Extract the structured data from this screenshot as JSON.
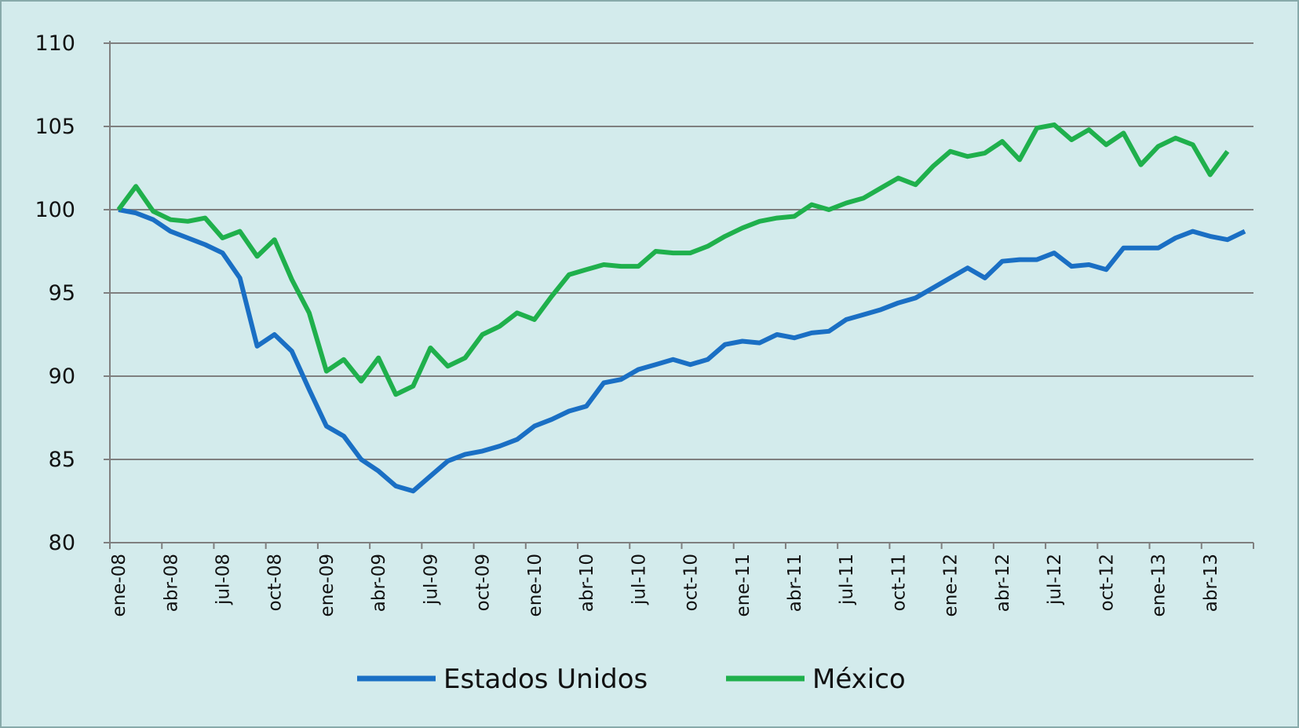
{
  "chart_data": {
    "type": "line",
    "categories": [
      "ene-08",
      null,
      null,
      "abr-08",
      null,
      null,
      "jul-08",
      null,
      null,
      "oct-08",
      null,
      null,
      "ene-09",
      null,
      null,
      "abr-09",
      null,
      null,
      "jul-09",
      null,
      null,
      "oct-09",
      null,
      null,
      "ene-10",
      null,
      null,
      "abr-10",
      null,
      null,
      "jul-10",
      null,
      null,
      "oct-10",
      null,
      null,
      "ene-11",
      null,
      null,
      "abr-11",
      null,
      null,
      "jul-11",
      null,
      null,
      "oct-11",
      null,
      null,
      "ene-12",
      null,
      null,
      "abr-12",
      null,
      null,
      "jul-12",
      null,
      null,
      "oct-12",
      null,
      null,
      "ene-13",
      null,
      null,
      "abr-13",
      null,
      null
    ],
    "series": [
      {
        "name": "Estados Unidos",
        "color": "#1a6fc4",
        "values": [
          100,
          99.8,
          99.4,
          98.7,
          98.3,
          97.9,
          97.4,
          95.9,
          91.8,
          92.5,
          91.5,
          89.2,
          87,
          86.4,
          85,
          84.3,
          83.4,
          83.1,
          84,
          84.9,
          85.3,
          85.5,
          85.8,
          86.2,
          87,
          87.4,
          87.9,
          88.2,
          89.6,
          89.8,
          90.4,
          90.7,
          91,
          90.7,
          91,
          91.9,
          92.1,
          92,
          92.5,
          92.3,
          92.6,
          92.7,
          93.4,
          93.7,
          94,
          94.4,
          94.7,
          95.3,
          95.9,
          96.5,
          95.9,
          96.9,
          97,
          97,
          97.4,
          96.6,
          96.7,
          96.4,
          97.7,
          97.7,
          97.7,
          98.3,
          98.7,
          98.4,
          98.2,
          98.7
        ]
      },
      {
        "name": "México",
        "color": "#1fb04c",
        "values": [
          100,
          101.4,
          99.9,
          99.4,
          99.3,
          99.5,
          98.3,
          98.7,
          97.2,
          98.2,
          95.8,
          93.8,
          90.3,
          91,
          89.7,
          91.1,
          88.9,
          89.4,
          91.7,
          90.6,
          91.1,
          92.5,
          93,
          93.8,
          93.4,
          94.8,
          96.1,
          96.4,
          96.7,
          96.6,
          96.6,
          97.5,
          97.4,
          97.4,
          97.8,
          98.4,
          98.9,
          99.3,
          99.5,
          99.6,
          100.3,
          100,
          100.4,
          100.7,
          101.3,
          101.9,
          101.5,
          102.6,
          103.5,
          103.2,
          103.4,
          104.1,
          103,
          104.9,
          105.1,
          104.2,
          104.8,
          103.9,
          104.6,
          102.7,
          103.8,
          104.3,
          103.9,
          102.1,
          103.5,
          null
        ]
      }
    ],
    "ylim": [
      80,
      110
    ],
    "yticks": [
      80,
      85,
      90,
      95,
      100,
      105,
      110
    ],
    "grid": true,
    "legend": "bottom"
  }
}
